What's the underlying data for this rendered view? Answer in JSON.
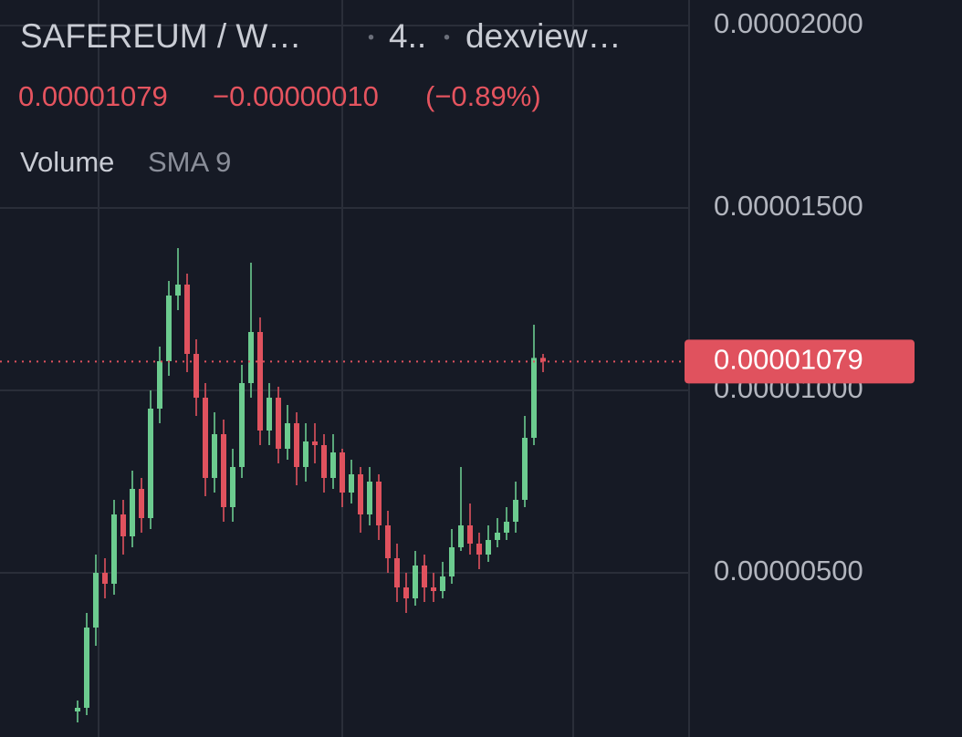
{
  "header": {
    "symbol": "SAFEREUM / W…",
    "interval": "4..",
    "source": "dexview…",
    "price": "0.00001079",
    "change": "−0.00000010",
    "change_pct": "(−0.89%)",
    "indicator": "Volume",
    "indicator_param": "SMA 9"
  },
  "chart_data": {
    "type": "candlestick",
    "up_color": "#6ccb8f",
    "down_color": "#e0525e",
    "ylim": [
      5e-07,
      2.07e-05
    ],
    "yticks": [
      {
        "value": 5e-06,
        "label": "0.00000500"
      },
      {
        "value": 1e-05,
        "label": "0.00001000"
      },
      {
        "value": 1.5e-05,
        "label": "0.00001500"
      },
      {
        "value": 2e-05,
        "label": "0.00002000"
      }
    ],
    "grid": true,
    "open": [
      1.2e-06,
      1.3e-06,
      3.5e-06,
      5e-06,
      4.7e-06,
      6.6e-06,
      6e-06,
      7.3e-06,
      6.5e-06,
      9.5e-06,
      1.08e-05,
      1.26e-05,
      1.29e-05,
      1.1e-05,
      9.8e-06,
      7.6e-06,
      8.8e-06,
      6.8e-06,
      7.9e-06,
      1.02e-05,
      1.16e-05,
      8.9e-06,
      9.8e-06,
      8.4e-06,
      9.1e-06,
      7.9e-06,
      8.6e-06,
      8.5e-06,
      7.6e-06,
      8.3e-06,
      7.2e-06,
      7.7e-06,
      6.6e-06,
      7.5e-06,
      6.3e-06,
      5.4e-06,
      4.6e-06,
      4.3e-06,
      5.2e-06,
      4.6e-06,
      4.5e-06,
      4.9e-06,
      5.7e-06,
      6.3e-06,
      5.8e-06,
      5.5e-06,
      5.9e-06,
      6.1e-06,
      6.4e-06,
      7e-06,
      8.7e-06,
      1.089e-05
    ],
    "high": [
      1.5e-06,
      3.9e-06,
      5.5e-06,
      5.4e-06,
      7e-06,
      7e-06,
      7.8e-06,
      7.6e-06,
      1e-05,
      1.12e-05,
      1.3e-05,
      1.39e-05,
      1.32e-05,
      1.14e-05,
      1.02e-05,
      9.4e-06,
      9.2e-06,
      8.4e-06,
      1.07e-05,
      1.35e-05,
      1.2e-05,
      1.02e-05,
      1.01e-05,
      9.6e-06,
      9.4e-06,
      9.1e-06,
      9.1e-06,
      8.8e-06,
      8.8e-06,
      8.4e-06,
      8.1e-06,
      7.9e-06,
      7.9e-06,
      7.7e-06,
      6.7e-06,
      5.8e-06,
      5e-06,
      5.6e-06,
      5.5e-06,
      5e-06,
      5.3e-06,
      6.2e-06,
      7.9e-06,
      6.9e-06,
      6.1e-06,
      6.3e-06,
      6.5e-06,
      6.8e-06,
      7.5e-06,
      9.3e-06,
      1.18e-05,
      1.1e-05
    ],
    "low": [
      9e-07,
      1.1e-06,
      3e-06,
      4.3e-06,
      4.4e-06,
      5.5e-06,
      5.7e-06,
      6.1e-06,
      6.2e-06,
      9.1e-06,
      1.04e-05,
      1.22e-05,
      1.05e-05,
      9.3e-06,
      7.1e-06,
      7.2e-06,
      6.4e-06,
      6.4e-06,
      7.6e-06,
      9.8e-06,
      8.5e-06,
      8.5e-06,
      8e-06,
      8.1e-06,
      7.4e-06,
      7.5e-06,
      8e-06,
      7.2e-06,
      7.3e-06,
      6.8e-06,
      6.9e-06,
      6.1e-06,
      6.3e-06,
      5.9e-06,
      5e-06,
      4.2e-06,
      3.9e-06,
      4.1e-06,
      4.2e-06,
      4.2e-06,
      4.3e-06,
      4.7e-06,
      5.6e-06,
      5.5e-06,
      5.1e-06,
      5.3e-06,
      5.7e-06,
      5.9e-06,
      6.1e-06,
      6.8e-06,
      8.5e-06,
      1.05e-05
    ],
    "close": [
      1.3e-06,
      3.5e-06,
      5e-06,
      4.7e-06,
      6.6e-06,
      6e-06,
      7.3e-06,
      6.5e-06,
      9.5e-06,
      1.08e-05,
      1.26e-05,
      1.29e-05,
      1.1e-05,
      9.8e-06,
      7.6e-06,
      8.8e-06,
      6.8e-06,
      7.9e-06,
      1.02e-05,
      1.16e-05,
      8.9e-06,
      9.8e-06,
      8.4e-06,
      9.1e-06,
      7.9e-06,
      8.6e-06,
      8.5e-06,
      7.6e-06,
      8.3e-06,
      7.2e-06,
      7.7e-06,
      6.6e-06,
      7.5e-06,
      6.3e-06,
      5.4e-06,
      4.6e-06,
      4.3e-06,
      5.2e-06,
      4.6e-06,
      4.5e-06,
      4.9e-06,
      5.7e-06,
      6.3e-06,
      5.8e-06,
      5.5e-06,
      5.9e-06,
      6.1e-06,
      6.4e-06,
      7e-06,
      8.7e-06,
      1.089e-05,
      1.079e-05
    ]
  }
}
